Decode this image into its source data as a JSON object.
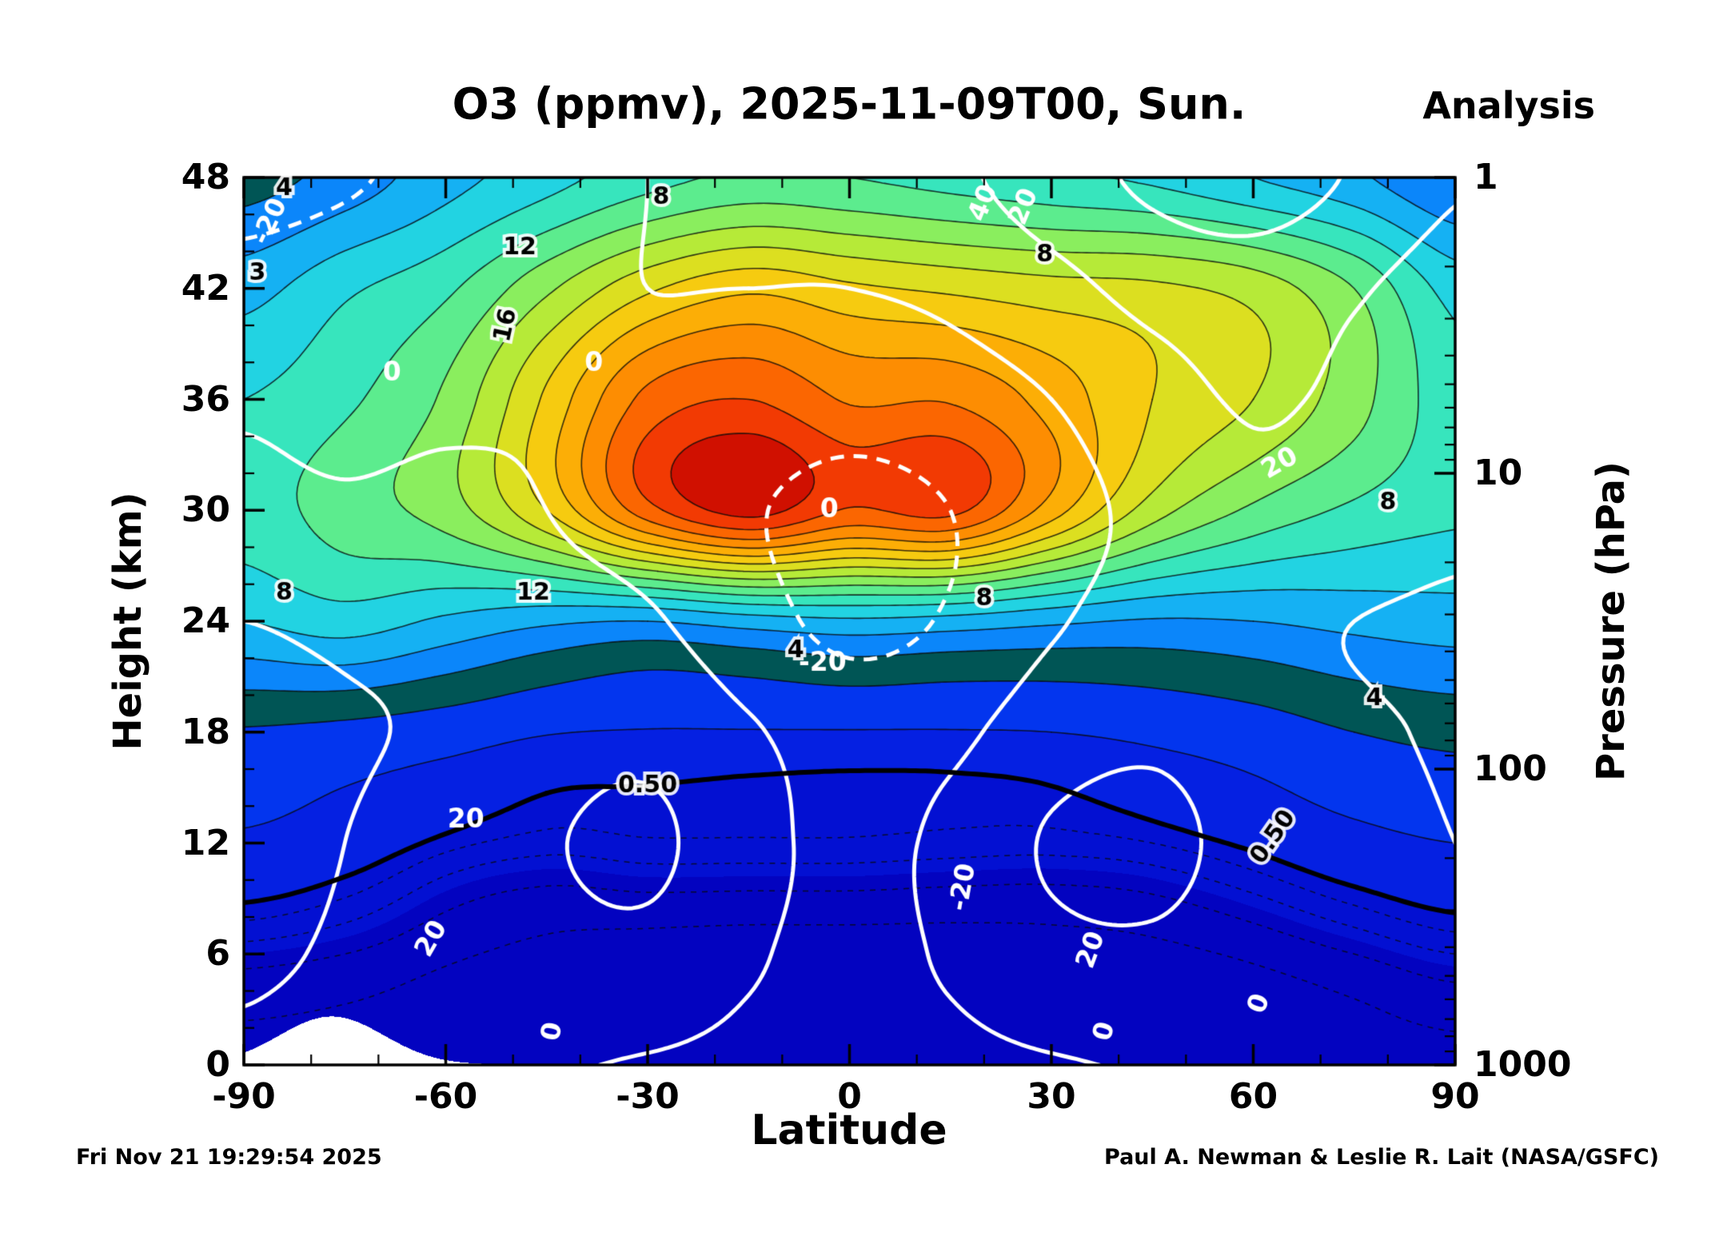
{
  "header": {
    "title": "O3 (ppmv), 2025-11-09T00, Sun.",
    "analysis_label": "Analysis"
  },
  "footer": {
    "generated": "Fri Nov 21 19:29:54 2025",
    "credit": "Paul A. Newman & Leslie R. Lait (NASA/GSFC)"
  },
  "axes": {
    "x": {
      "label": "Latitude",
      "ticks": [
        -90,
        -60,
        -30,
        0,
        30,
        60,
        90
      ],
      "minor_step": 10,
      "range": [
        -90,
        90
      ]
    },
    "y_left": {
      "label": "Height (km)",
      "ticks": [
        0,
        6,
        12,
        18,
        24,
        30,
        36,
        42,
        48
      ],
      "minor_step": 2,
      "range": [
        0,
        48
      ]
    },
    "y_right": {
      "label": "Pressure (hPa)",
      "ticks": [
        1,
        10,
        100,
        1000
      ],
      "log_scale": true,
      "range": [
        1,
        1000
      ]
    }
  },
  "chart_data": {
    "type": "heatmap",
    "title": "O3 (ppmv), 2025-11-09T00, Sun.",
    "subtitle": "Analysis",
    "xlabel": "Latitude",
    "ylabel_left": "Height (km)",
    "ylabel_right": "Pressure (hPa)",
    "x_lat_deg": [
      -90,
      -75,
      -60,
      -45,
      -30,
      -15,
      0,
      15,
      30,
      45,
      60,
      75,
      90
    ],
    "y_height_km": [
      0,
      6,
      12,
      18,
      24,
      30,
      36,
      42,
      48
    ],
    "xlim": [
      -90,
      90
    ],
    "ylim": [
      0,
      48
    ],
    "pressure_ticks_hpa": [
      1,
      10,
      100,
      1000
    ],
    "o3_ppmv": {
      "units": "ppmv",
      "grid": [
        [
          0.06,
          0.05,
          0.04,
          0.03,
          0.03,
          0.03,
          0.03,
          0.03,
          0.03,
          0.03,
          0.04,
          0.05,
          0.06
        ],
        [
          0.25,
          0.2,
          0.12,
          0.07,
          0.05,
          0.04,
          0.04,
          0.04,
          0.05,
          0.07,
          0.12,
          0.2,
          0.3
        ],
        [
          0.9,
          0.7,
          0.45,
          0.35,
          0.38,
          0.38,
          0.38,
          0.36,
          0.35,
          0.4,
          0.55,
          0.8,
          1.0
        ],
        [
          1.9,
          1.7,
          1.4,
          1.05,
          0.95,
          0.95,
          0.95,
          0.95,
          1.0,
          1.2,
          1.5,
          2.0,
          2.3
        ],
        [
          5.0,
          5.5,
          4.8,
          4.2,
          4.0,
          4.5,
          4.8,
          4.6,
          4.2,
          3.9,
          4.0,
          4.3,
          4.5
        ],
        [
          6.5,
          7.5,
          8.5,
          11.0,
          14.6,
          16.4,
          14.9,
          15.3,
          12.5,
          9.5,
          7.8,
          6.8,
          6.2
        ],
        [
          6.0,
          6.8,
          8.2,
          11.2,
          14.3,
          15.0,
          13.9,
          13.9,
          12.6,
          11.0,
          10.0,
          8.4,
          6.4
        ],
        [
          4.6,
          5.8,
          6.8,
          8.8,
          10.8,
          11.8,
          11.2,
          10.8,
          10.4,
          10.2,
          9.6,
          8.0,
          5.6
        ],
        [
          2.6,
          3.4,
          4.6,
          5.6,
          6.6,
          7.2,
          7.0,
          6.6,
          6.2,
          5.8,
          5.0,
          4.2,
          3.0
        ]
      ],
      "fill_levels": [
        0.25,
        0.5,
        1,
        2,
        3,
        4,
        5,
        6,
        7,
        8,
        9,
        10,
        11,
        12,
        13,
        14,
        15,
        16
      ],
      "fill_colors": [
        "#0303c0",
        "#0310d2",
        "#0520e2",
        "#0335ee",
        "#055f2",
        "#0b86fa",
        "#15b1f3",
        "#22d3e2",
        "#37e5bd",
        "#5cec8e",
        "#8aee5e",
        "#b6ea38",
        "#dcdf20",
        "#f6cb10",
        "#fcae06",
        "#fd8d02",
        "#fb6601",
        "#f23a03",
        "#d01000"
      ],
      "contour_levels_thin": [
        1,
        2,
        3,
        4,
        5,
        6,
        7,
        8,
        9,
        10,
        11,
        12,
        13,
        14,
        15,
        16
      ],
      "contour_levels_dashed": [
        0.1,
        0.2,
        0.3,
        0.4
      ],
      "contour_level_thick": 0.5
    },
    "overlay_wind_ms": {
      "units": "m/s",
      "color": "#ffffff",
      "negative_dashed": true,
      "contour_levels": [
        -20,
        0,
        20,
        40
      ],
      "grid": [
        [
          1,
          2,
          2,
          1,
          -1,
          -3,
          -4,
          -3,
          -1,
          1,
          2,
          2,
          1
        ],
        [
          -1,
          1,
          5,
          12,
          14,
          2,
          -4,
          2,
          14,
          16,
          8,
          3,
          1
        ],
        [
          -2,
          0,
          6,
          18,
          24,
          6,
          -4,
          4,
          22,
          26,
          12,
          4,
          0
        ],
        [
          -3,
          -1,
          2,
          10,
          14,
          2,
          -8,
          -4,
          10,
          16,
          8,
          2,
          -1
        ],
        [
          0,
          1,
          2,
          4,
          2,
          -12,
          -25,
          -18,
          -2,
          6,
          4,
          0,
          -2
        ],
        [
          2,
          1,
          2,
          0,
          -6,
          -18,
          -26,
          -20,
          -6,
          4,
          14,
          10,
          4
        ],
        [
          -2,
          -4,
          -2,
          -1,
          -2,
          -8,
          -12,
          -8,
          0,
          12,
          22,
          16,
          8
        ],
        [
          -14,
          -10,
          -6,
          -2,
          0,
          0,
          0,
          4,
          14,
          26,
          30,
          22,
          12
        ],
        [
          -26,
          -22,
          -14,
          -6,
          0,
          4,
          8,
          16,
          30,
          44,
          50,
          38,
          22
        ]
      ]
    },
    "contour_labels": {
      "o3": [
        {
          "text": "4",
          "lat": -84,
          "z": 47.4,
          "rot": 0
        },
        {
          "text": "3",
          "lat": -88,
          "z": 42.8,
          "rot": 0
        },
        {
          "text": "8",
          "lat": -28,
          "z": 46.9,
          "rot": 0
        },
        {
          "text": "12",
          "lat": -49,
          "z": 44.2,
          "rot": 0
        },
        {
          "text": "16",
          "lat": -51,
          "z": 40.0,
          "rot": -78
        },
        {
          "text": "12",
          "lat": -47,
          "z": 25.5,
          "rot": 0
        },
        {
          "text": "8",
          "lat": -84,
          "z": 25.5,
          "rot": 0
        },
        {
          "text": "4",
          "lat": -8,
          "z": 22.4,
          "rot": 0
        },
        {
          "text": "8",
          "lat": 20,
          "z": 25.2,
          "rot": 0
        },
        {
          "text": "8",
          "lat": 29,
          "z": 43.8,
          "rot": 0
        },
        {
          "text": "8",
          "lat": 80,
          "z": 30.4,
          "rot": 0
        },
        {
          "text": "4",
          "lat": 78,
          "z": 19.8,
          "rot": 0
        },
        {
          "text": "0.50",
          "lat": -30,
          "z": 15.1,
          "rot": 0
        },
        {
          "text": "0.50",
          "lat": 63,
          "z": 12.3,
          "rot": -55
        }
      ],
      "wind": [
        {
          "text": "-20",
          "lat": -86,
          "z": 45.6,
          "rot": -65
        },
        {
          "text": "0",
          "lat": -68,
          "z": 37.4,
          "rot": 0
        },
        {
          "text": "0",
          "lat": -38,
          "z": 37.9,
          "rot": 0
        },
        {
          "text": "0",
          "lat": -3,
          "z": 30.0,
          "rot": 0
        },
        {
          "text": "-20",
          "lat": -4,
          "z": 21.7,
          "rot": 0
        },
        {
          "text": "20",
          "lat": -57,
          "z": 13.2,
          "rot": 0
        },
        {
          "text": "20",
          "lat": -62,
          "z": 6.8,
          "rot": -60
        },
        {
          "text": "40",
          "lat": 20,
          "z": 46.6,
          "rot": -68
        },
        {
          "text": "20",
          "lat": 26,
          "z": 46.4,
          "rot": -68
        },
        {
          "text": "20",
          "lat": 64,
          "z": 32.5,
          "rot": -30
        },
        {
          "text": "20",
          "lat": 36,
          "z": 6.2,
          "rot": -70
        },
        {
          "text": "-20",
          "lat": 17,
          "z": 9.6,
          "rot": -80
        },
        {
          "text": "0",
          "lat": -44,
          "z": 1.8,
          "rot": -80
        },
        {
          "text": "0",
          "lat": 38,
          "z": 1.8,
          "rot": -75
        },
        {
          "text": "0",
          "lat": 61,
          "z": 3.3,
          "rot": -70
        }
      ]
    }
  }
}
